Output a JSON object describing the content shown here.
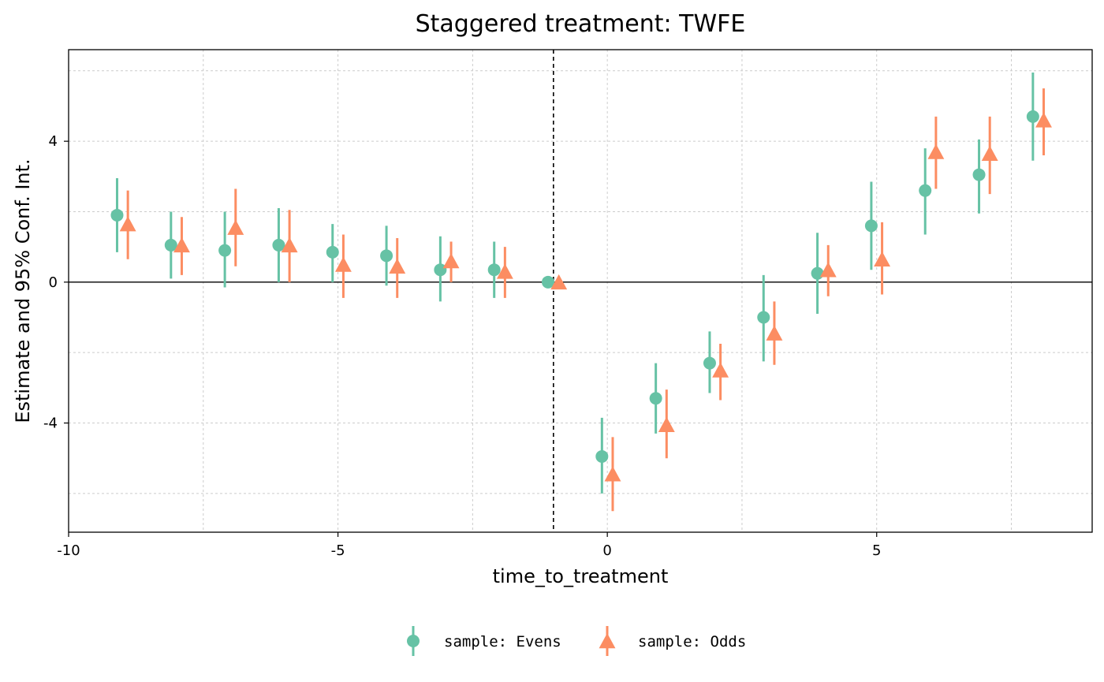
{
  "chart_data": {
    "type": "scatter",
    "title": "Staggered treatment: TWFE",
    "xlabel": "time_to_treatment",
    "ylabel": "Estimate and 95% Conf. Int.",
    "xlim": [
      -10,
      9
    ],
    "ylim": [
      -7.1,
      6.6
    ],
    "x_ticks": [
      -10,
      -5,
      0,
      5
    ],
    "x_tick_labels": [
      "-10",
      "-5",
      "0",
      "5"
    ],
    "y_ticks": [
      -4,
      0,
      4
    ],
    "y_tick_labels": [
      "-4",
      "0",
      "4"
    ],
    "grid": true,
    "reference_hline": 0,
    "reference_vline": -1,
    "legend_position": "bottom",
    "series": [
      {
        "name": "sample: Evens",
        "marker": "circle",
        "color": "#66c2a5",
        "x": [
          -9,
          -8,
          -7,
          -6,
          -5,
          -4,
          -3,
          -2,
          -1,
          0,
          1,
          2,
          3,
          4,
          5,
          6,
          7,
          8
        ],
        "y": [
          1.9,
          1.05,
          0.9,
          1.05,
          0.85,
          0.75,
          0.35,
          0.35,
          0.0,
          -4.95,
          -3.3,
          -2.3,
          -1.0,
          0.25,
          1.6,
          2.6,
          3.05,
          4.7
        ],
        "ci_low": [
          0.85,
          0.1,
          -0.15,
          0.0,
          0.0,
          -0.1,
          -0.55,
          -0.45,
          0.0,
          -6.0,
          -4.3,
          -3.15,
          -2.25,
          -0.9,
          0.35,
          1.35,
          1.95,
          3.45
        ],
        "ci_high": [
          2.95,
          2.0,
          2.0,
          2.1,
          1.65,
          1.6,
          1.3,
          1.15,
          0.0,
          -3.85,
          -2.3,
          -1.4,
          0.2,
          1.4,
          2.85,
          3.8,
          4.05,
          5.95
        ]
      },
      {
        "name": "sample: Odds",
        "marker": "triangle",
        "color": "#fc8d62",
        "x": [
          -9,
          -8,
          -7,
          -6,
          -5,
          -4,
          -3,
          -2,
          -1,
          0,
          1,
          2,
          3,
          4,
          5,
          6,
          7,
          8
        ],
        "y": [
          1.65,
          1.05,
          1.55,
          1.05,
          0.5,
          0.45,
          0.6,
          0.3,
          0.0,
          -5.45,
          -4.05,
          -2.5,
          -1.45,
          0.35,
          0.65,
          3.7,
          3.65,
          4.6
        ],
        "ci_low": [
          0.65,
          0.2,
          0.45,
          0.0,
          -0.45,
          -0.45,
          0.0,
          -0.45,
          0.0,
          -6.5,
          -5.0,
          -3.35,
          -2.35,
          -0.4,
          -0.35,
          2.65,
          2.5,
          3.6
        ],
        "ci_high": [
          2.6,
          1.85,
          2.65,
          2.05,
          1.35,
          1.25,
          1.15,
          1.0,
          0.0,
          -4.4,
          -3.05,
          -1.75,
          -0.55,
          1.05,
          1.7,
          4.7,
          4.7,
          5.5
        ]
      }
    ]
  }
}
